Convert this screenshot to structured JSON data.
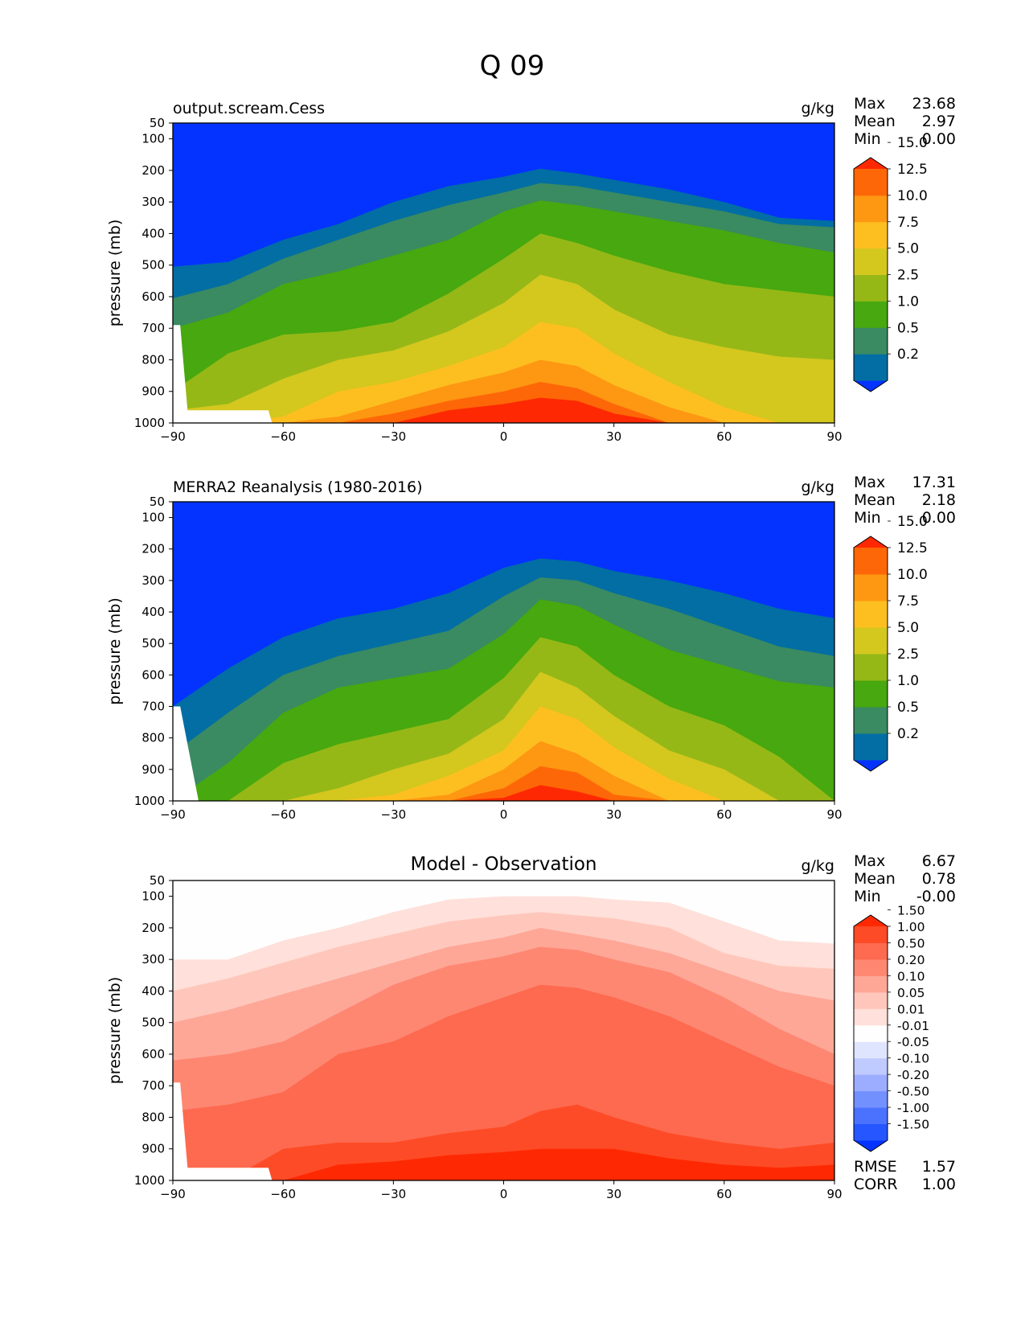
{
  "figure_title": "Q 09",
  "chart_data": [
    {
      "type": "contour",
      "title": "output.scream.Cess",
      "units": "g/kg",
      "ylabel": "pressure (mb)",
      "x_ticks": [
        "−90",
        "−60",
        "−30",
        "0",
        "30",
        "60",
        "90"
      ],
      "y_ticks": [
        "50",
        "100",
        "200",
        "300",
        "400",
        "500",
        "600",
        "700",
        "800",
        "900",
        "1000"
      ],
      "xlim": [
        -90,
        90
      ],
      "ylim": [
        1000,
        50
      ],
      "stats": [
        {
          "label": "Max",
          "value": "23.68"
        },
        {
          "label": "Mean",
          "value": "2.97"
        },
        {
          "label": "Min",
          "value": "0.00"
        }
      ],
      "colorbar": {
        "levels": [
          "0.2",
          "0.5",
          "1.0",
          "2.5",
          "5.0",
          "7.5",
          "10.0",
          "12.5",
          "15.0"
        ],
        "colors": [
          "#0433ff",
          "#026ea4",
          "#3a8a62",
          "#47a80f",
          "#95b817",
          "#d4c71e",
          "#fdbf20",
          "#fe9712",
          "#fe6707",
          "#fe2902"
        ]
      },
      "contour_levels_top_profile": {
        "lat": [
          -90,
          -75,
          -60,
          -45,
          -30,
          -15,
          0,
          10,
          20,
          30,
          45,
          60,
          75,
          90
        ],
        "0.2": [
          505,
          490,
          420,
          370,
          300,
          250,
          220,
          195,
          210,
          230,
          260,
          300,
          350,
          360
        ],
        "0.5": [
          605,
          560,
          480,
          420,
          360,
          310,
          270,
          240,
          250,
          270,
          300,
          330,
          370,
          380
        ],
        "1.0": [
          700,
          650,
          560,
          520,
          470,
          420,
          330,
          295,
          310,
          330,
          360,
          390,
          430,
          460
        ],
        "2.5": [
          900,
          780,
          720,
          710,
          680,
          590,
          480,
          400,
          430,
          470,
          520,
          560,
          580,
          600
        ],
        "5.0": [
          960,
          940,
          860,
          800,
          770,
          710,
          620,
          530,
          560,
          640,
          720,
          760,
          790,
          800
        ],
        "7.5": [
          1000,
          1000,
          980,
          900,
          870,
          820,
          760,
          680,
          700,
          780,
          870,
          950,
          1000,
          1000
        ],
        "10.0": [
          1000,
          1000,
          1000,
          980,
          930,
          880,
          840,
          800,
          820,
          880,
          950,
          1000,
          1000,
          1000
        ],
        "12.5": [
          1000,
          1000,
          1000,
          1000,
          970,
          930,
          900,
          870,
          890,
          940,
          1000,
          1000,
          1000,
          1000
        ],
        "15.0": [
          1000,
          1000,
          1000,
          1000,
          1000,
          960,
          940,
          920,
          930,
          970,
          1000,
          1000,
          1000,
          1000
        ]
      }
    },
    {
      "type": "contour",
      "title": "MERRA2 Reanalysis (1980-2016)",
      "units": "g/kg",
      "ylabel": "pressure (mb)",
      "x_ticks": [
        "−90",
        "−60",
        "−30",
        "0",
        "30",
        "60",
        "90"
      ],
      "y_ticks": [
        "50",
        "100",
        "200",
        "300",
        "400",
        "500",
        "600",
        "700",
        "800",
        "900",
        "1000"
      ],
      "xlim": [
        -90,
        90
      ],
      "ylim": [
        1000,
        50
      ],
      "stats": [
        {
          "label": "Max",
          "value": "17.31"
        },
        {
          "label": "Mean",
          "value": "2.18"
        },
        {
          "label": "Min",
          "value": "0.00"
        }
      ],
      "colorbar": {
        "levels": [
          "0.2",
          "0.5",
          "1.0",
          "2.5",
          "5.0",
          "7.5",
          "10.0",
          "12.5",
          "15.0"
        ],
        "colors": [
          "#0433ff",
          "#026ea4",
          "#3a8a62",
          "#47a80f",
          "#95b817",
          "#d4c71e",
          "#fdbf20",
          "#fe9712",
          "#fe6707",
          "#fe2902"
        ]
      },
      "contour_levels_top_profile": {
        "lat": [
          -90,
          -75,
          -60,
          -45,
          -30,
          -15,
          0,
          10,
          20,
          30,
          45,
          60,
          75,
          90
        ],
        "0.2": [
          700,
          580,
          480,
          420,
          390,
          340,
          260,
          230,
          240,
          270,
          300,
          340,
          390,
          420
        ],
        "0.5": [
          850,
          720,
          600,
          540,
          500,
          460,
          350,
          290,
          300,
          340,
          390,
          450,
          510,
          540
        ],
        "1.0": [
          1000,
          880,
          720,
          640,
          610,
          580,
          470,
          360,
          380,
          440,
          520,
          570,
          620,
          640
        ],
        "2.5": [
          1000,
          1000,
          880,
          820,
          780,
          740,
          610,
          480,
          510,
          600,
          700,
          760,
          860,
          1000
        ],
        "5.0": [
          1000,
          1000,
          1000,
          960,
          900,
          850,
          740,
          590,
          640,
          730,
          840,
          900,
          1000,
          1000
        ],
        "7.5": [
          1000,
          1000,
          1000,
          1000,
          980,
          920,
          840,
          700,
          740,
          830,
          930,
          1000,
          1000,
          1000
        ],
        "10.0": [
          1000,
          1000,
          1000,
          1000,
          1000,
          980,
          900,
          810,
          850,
          920,
          1000,
          1000,
          1000,
          1000
        ],
        "12.5": [
          1000,
          1000,
          1000,
          1000,
          1000,
          1000,
          960,
          890,
          910,
          980,
          1000,
          1000,
          1000,
          1000
        ],
        "15.0": [
          1000,
          1000,
          1000,
          1000,
          1000,
          1000,
          990,
          950,
          970,
          1000,
          1000,
          1000,
          1000,
          1000
        ]
      }
    },
    {
      "type": "contour",
      "title": "Model - Observation",
      "units": "g/kg",
      "ylabel": "pressure (mb)",
      "x_ticks": [
        "−90",
        "−60",
        "−30",
        "0",
        "30",
        "60",
        "90"
      ],
      "y_ticks": [
        "50",
        "100",
        "200",
        "300",
        "400",
        "500",
        "600",
        "700",
        "800",
        "900",
        "1000"
      ],
      "xlim": [
        -90,
        90
      ],
      "ylim": [
        1000,
        50
      ],
      "stats": [
        {
          "label": "Max",
          "value": "6.67"
        },
        {
          "label": "Mean",
          "value": "0.78"
        },
        {
          "label": "Min",
          "value": "-0.00"
        }
      ],
      "extra_stats": [
        {
          "label": "RMSE",
          "value": "1.57"
        },
        {
          "label": "CORR",
          "value": "1.00"
        }
      ],
      "colorbar": {
        "levels": [
          "-1.50",
          "-1.00",
          "-0.50",
          "-0.20",
          "-0.10",
          "-0.05",
          "-0.01",
          "0.01",
          "0.05",
          "0.10",
          "0.20",
          "0.50",
          "1.00",
          "1.50"
        ],
        "colors": [
          "#0433ff",
          "#2556ff",
          "#4a72ff",
          "#7390ff",
          "#9cadff",
          "#bfcaff",
          "#dfe5ff",
          "#fefefe",
          "#ffe0da",
          "#ffc7bb",
          "#fea797",
          "#fe8772",
          "#fe6a4f",
          "#fe4b27",
          "#fe2902"
        ]
      },
      "contour_levels_top_profile": {
        "lat": [
          -90,
          -75,
          -60,
          -45,
          -30,
          -15,
          0,
          10,
          20,
          30,
          45,
          60,
          75,
          90
        ],
        "0.01": [
          300,
          300,
          240,
          200,
          150,
          110,
          100,
          100,
          100,
          110,
          120,
          180,
          240,
          250
        ],
        "0.05": [
          400,
          360,
          310,
          260,
          220,
          180,
          160,
          150,
          160,
          170,
          200,
          280,
          320,
          330
        ],
        "0.10": [
          500,
          460,
          410,
          360,
          310,
          260,
          230,
          200,
          220,
          240,
          280,
          340,
          400,
          430
        ],
        "0.20": [
          620,
          600,
          560,
          470,
          380,
          320,
          290,
          260,
          270,
          300,
          340,
          420,
          520,
          600
        ],
        "0.50": [
          780,
          760,
          720,
          600,
          560,
          480,
          420,
          380,
          390,
          420,
          480,
          560,
          640,
          700
        ],
        "1.00": [
          1000,
          1000,
          900,
          880,
          880,
          850,
          830,
          780,
          760,
          800,
          850,
          880,
          900,
          880
        ],
        "1.50": [
          1000,
          1000,
          1000,
          950,
          940,
          920,
          910,
          900,
          900,
          900,
          930,
          950,
          960,
          950
        ]
      }
    }
  ]
}
